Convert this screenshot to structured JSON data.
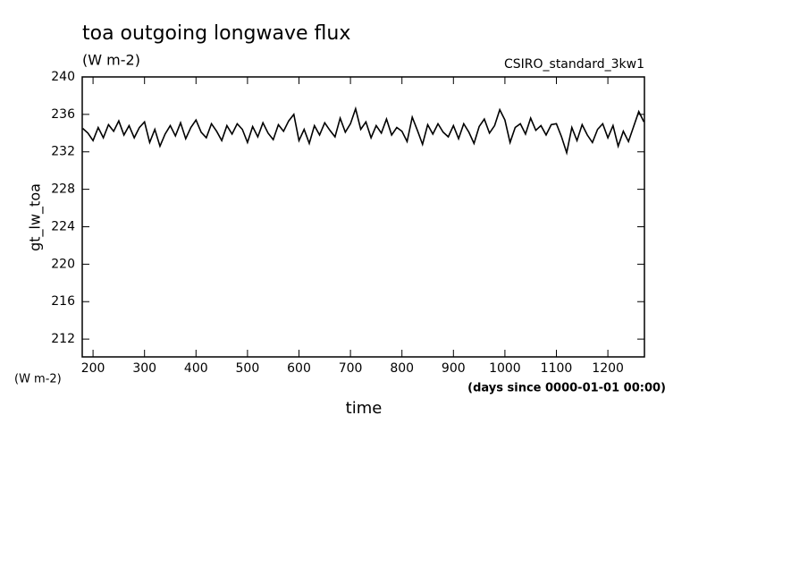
{
  "chart_data": {
    "type": "line",
    "title": "toa outgoing longwave flux",
    "subtitle": "(W m-2)",
    "annotation": "CSIRO_standard_3kw1",
    "y_label": "gt_lw_toa",
    "y_units": "(W m-2)",
    "x_units": "(days since 0000-01-01 00:00)",
    "x_label": "time",
    "x": [
      180,
      190,
      200,
      210,
      220,
      230,
      240,
      250,
      260,
      270,
      280,
      290,
      300,
      310,
      320,
      330,
      340,
      350,
      360,
      370,
      380,
      390,
      400,
      410,
      420,
      430,
      440,
      450,
      460,
      470,
      480,
      490,
      500,
      510,
      520,
      530,
      540,
      550,
      560,
      570,
      580,
      590,
      600,
      610,
      620,
      630,
      640,
      650,
      660,
      670,
      680,
      690,
      700,
      710,
      720,
      730,
      740,
      750,
      760,
      770,
      780,
      790,
      800,
      810,
      820,
      830,
      840,
      850,
      860,
      870,
      880,
      890,
      900,
      910,
      920,
      930,
      940,
      950,
      960,
      970,
      980,
      990,
      1000,
      1010,
      1020,
      1030,
      1040,
      1050,
      1060,
      1070,
      1080,
      1090,
      1100,
      1110,
      1120,
      1130,
      1140,
      1150,
      1160,
      1170,
      1180,
      1190,
      1200,
      1210,
      1220,
      1230,
      1240,
      1250,
      1260,
      1270
    ],
    "series": [
      {
        "color": "#000000",
        "values": [
          234.5,
          234.0,
          233.2,
          234.6,
          233.5,
          234.9,
          234.2,
          235.3,
          233.8,
          234.8,
          233.5,
          234.6,
          235.2,
          233.0,
          234.4,
          232.6,
          233.9,
          234.8,
          233.7,
          235.1,
          233.4,
          234.6,
          235.4,
          234.1,
          233.5,
          235.0,
          234.2,
          233.2,
          234.8,
          233.9,
          235.0,
          234.4,
          233.0,
          234.7,
          233.6,
          235.1,
          234.0,
          233.3,
          234.9,
          234.2,
          235.3,
          236.0,
          233.2,
          234.4,
          232.9,
          234.8,
          233.8,
          235.1,
          234.3,
          233.6,
          235.6,
          234.1,
          235.0,
          236.6,
          234.4,
          235.2,
          233.5,
          234.8,
          234.0,
          235.5,
          233.8,
          234.6,
          234.2,
          233.1,
          235.7,
          234.3,
          232.8,
          234.9,
          233.9,
          235.0,
          234.1,
          233.6,
          234.8,
          233.4,
          235.0,
          234.1,
          232.9,
          234.7,
          235.5,
          234.0,
          234.8,
          236.5,
          235.4,
          233.0,
          234.6,
          235.0,
          233.9,
          235.6,
          234.3,
          234.8,
          233.8,
          234.9,
          235.0,
          233.6,
          231.9,
          234.6,
          233.2,
          234.9,
          233.8,
          233.0,
          234.4,
          235.0,
          233.5,
          234.8,
          232.6,
          234.2,
          233.1,
          234.7,
          236.3,
          235.2
        ]
      }
    ],
    "xlim": [
      179,
      1271
    ],
    "ylim": [
      210.1,
      240
    ],
    "xticks": [
      200,
      300,
      400,
      500,
      600,
      700,
      800,
      900,
      1000,
      1100,
      1200
    ],
    "yticks": [
      212,
      216,
      220,
      224,
      228,
      232,
      236,
      240
    ]
  }
}
